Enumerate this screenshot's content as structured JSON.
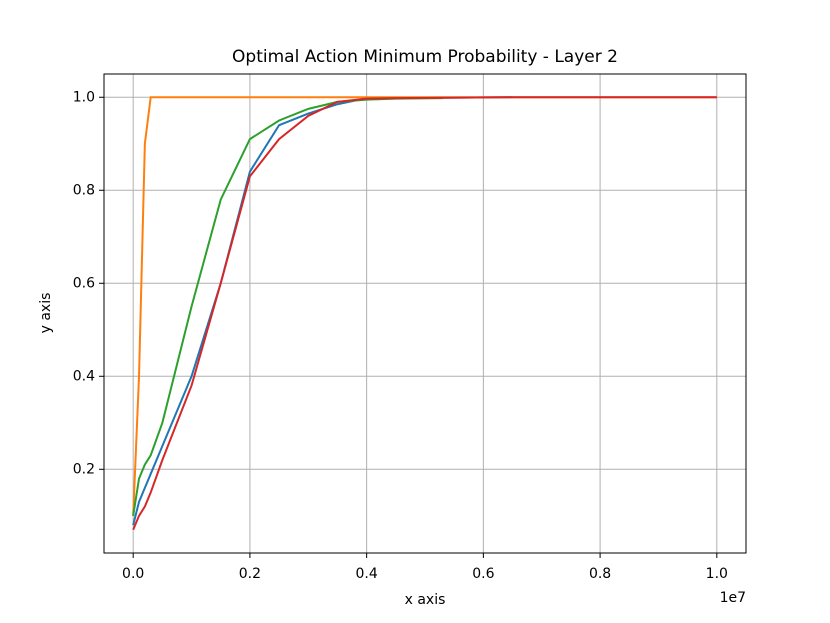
{
  "chart_data": {
    "type": "line",
    "title": "Optimal Action Minimum Probability - Layer 2",
    "x_label": "x axis",
    "y_label": "y axis",
    "x_offset_label": "1e7",
    "x": [
      0,
      0.01,
      0.02,
      0.03,
      0.05,
      0.1,
      0.15,
      0.2,
      0.25,
      0.3,
      0.35,
      0.4,
      0.45,
      0.53,
      0.65,
      1.0
    ],
    "series": [
      {
        "color": "#1f77b4",
        "values": [
          0.08,
          0.13,
          0.16,
          0.19,
          0.25,
          0.4,
          0.6,
          0.84,
          0.94,
          0.965,
          0.985,
          0.998,
          0.999,
          0.999,
          1.0,
          null
        ]
      },
      {
        "color": "#ff7f0e",
        "values": [
          0.1,
          0.4,
          0.9,
          1.0,
          1.0,
          1.0,
          1.0,
          1.0,
          1.0,
          1.0,
          1.0,
          1.0,
          1.0,
          1.0,
          1.0,
          1.0
        ]
      },
      {
        "color": "#2ca02c",
        "values": [
          0.1,
          0.18,
          0.21,
          0.23,
          0.3,
          0.55,
          0.78,
          0.91,
          0.95,
          0.975,
          0.99,
          0.995,
          0.997,
          0.998,
          null,
          null
        ]
      },
      {
        "color": "#d62728",
        "values": [
          0.07,
          0.1,
          0.12,
          0.15,
          0.22,
          0.38,
          0.6,
          0.83,
          0.91,
          0.96,
          0.99,
          0.997,
          0.998,
          0.999,
          1.0,
          1.0
        ]
      }
    ],
    "xlim": [
      -0.05,
      1.05
    ],
    "xticks": [
      {
        "value": 0,
        "label": "0.0"
      },
      0.2,
      0.4,
      0.6,
      0.8,
      {
        "value": 1,
        "label": "1.0"
      }
    ],
    "ylim": [
      0.02,
      1.05
    ],
    "yticks": [
      0.2,
      0.4,
      0.6,
      0.8,
      {
        "value": 1,
        "label": "1.0"
      }
    ],
    "grid": true
  }
}
